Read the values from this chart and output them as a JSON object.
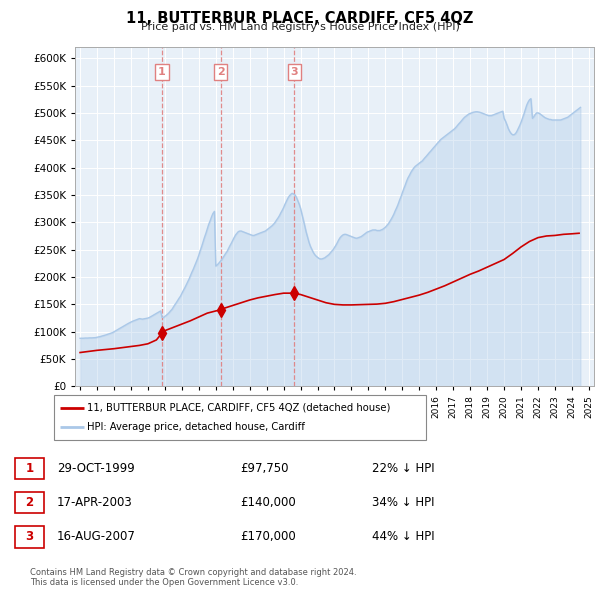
{
  "title": "11, BUTTERBUR PLACE, CARDIFF, CF5 4QZ",
  "subtitle": "Price paid vs. HM Land Registry's House Price Index (HPI)",
  "ylabel_ticks": [
    "£0",
    "£50K",
    "£100K",
    "£150K",
    "£200K",
    "£250K",
    "£300K",
    "£350K",
    "£400K",
    "£450K",
    "£500K",
    "£550K",
    "£600K"
  ],
  "yticks": [
    0,
    50000,
    100000,
    150000,
    200000,
    250000,
    300000,
    350000,
    400000,
    450000,
    500000,
    550000,
    600000
  ],
  "ylim": [
    0,
    620000
  ],
  "xlim_start": 1994.7,
  "xlim_end": 2025.3,
  "hpi_color": "#aac8e8",
  "property_color": "#cc0000",
  "vline_color": "#e08080",
  "background_color": "#e8f0f8",
  "grid_color": "#ffffff",
  "legend_label_property": "11, BUTTERBUR PLACE, CARDIFF, CF5 4QZ (detached house)",
  "legend_label_hpi": "HPI: Average price, detached house, Cardiff",
  "sale_points": [
    {
      "num": 1,
      "date": "29-OCT-1999",
      "price": 97750,
      "pct": "22%",
      "x_year": 1999.83
    },
    {
      "num": 2,
      "date": "17-APR-2003",
      "price": 140000,
      "pct": "34%",
      "x_year": 2003.29
    },
    {
      "num": 3,
      "date": "16-AUG-2007",
      "price": 170000,
      "pct": "44%",
      "x_year": 2007.62
    }
  ],
  "footer": "Contains HM Land Registry data © Crown copyright and database right 2024.\nThis data is licensed under the Open Government Licence v3.0.",
  "hpi_years": [
    1995,
    1995.08,
    1995.17,
    1995.25,
    1995.33,
    1995.42,
    1995.5,
    1995.58,
    1995.67,
    1995.75,
    1995.83,
    1995.92,
    1996,
    1996.08,
    1996.17,
    1996.25,
    1996.33,
    1996.42,
    1996.5,
    1996.58,
    1996.67,
    1996.75,
    1996.83,
    1996.92,
    1997,
    1997.08,
    1997.17,
    1997.25,
    1997.33,
    1997.42,
    1997.5,
    1997.58,
    1997.67,
    1997.75,
    1997.83,
    1997.92,
    1998,
    1998.08,
    1998.17,
    1998.25,
    1998.33,
    1998.42,
    1998.5,
    1998.58,
    1998.67,
    1998.75,
    1998.83,
    1998.92,
    1999,
    1999.08,
    1999.17,
    1999.25,
    1999.33,
    1999.42,
    1999.5,
    1999.58,
    1999.67,
    1999.75,
    1999.83,
    1999.92,
    2000,
    2000.08,
    2000.17,
    2000.25,
    2000.33,
    2000.42,
    2000.5,
    2000.58,
    2000.67,
    2000.75,
    2000.83,
    2000.92,
    2001,
    2001.08,
    2001.17,
    2001.25,
    2001.33,
    2001.42,
    2001.5,
    2001.58,
    2001.67,
    2001.75,
    2001.83,
    2001.92,
    2002,
    2002.08,
    2002.17,
    2002.25,
    2002.33,
    2002.42,
    2002.5,
    2002.58,
    2002.67,
    2002.75,
    2002.83,
    2002.92,
    2003,
    2003.08,
    2003.17,
    2003.25,
    2003.33,
    2003.42,
    2003.5,
    2003.58,
    2003.67,
    2003.75,
    2003.83,
    2003.92,
    2004,
    2004.08,
    2004.17,
    2004.25,
    2004.33,
    2004.42,
    2004.5,
    2004.58,
    2004.67,
    2004.75,
    2004.83,
    2004.92,
    2005,
    2005.08,
    2005.17,
    2005.25,
    2005.33,
    2005.42,
    2005.5,
    2005.58,
    2005.67,
    2005.75,
    2005.83,
    2005.92,
    2006,
    2006.08,
    2006.17,
    2006.25,
    2006.33,
    2006.42,
    2006.5,
    2006.58,
    2006.67,
    2006.75,
    2006.83,
    2006.92,
    2007,
    2007.08,
    2007.17,
    2007.25,
    2007.33,
    2007.42,
    2007.5,
    2007.58,
    2007.67,
    2007.75,
    2007.83,
    2007.92,
    2008,
    2008.08,
    2008.17,
    2008.25,
    2008.33,
    2008.42,
    2008.5,
    2008.58,
    2008.67,
    2008.75,
    2008.83,
    2008.92,
    2009,
    2009.08,
    2009.17,
    2009.25,
    2009.33,
    2009.42,
    2009.5,
    2009.58,
    2009.67,
    2009.75,
    2009.83,
    2009.92,
    2010,
    2010.08,
    2010.17,
    2010.25,
    2010.33,
    2010.42,
    2010.5,
    2010.58,
    2010.67,
    2010.75,
    2010.83,
    2010.92,
    2011,
    2011.08,
    2011.17,
    2011.25,
    2011.33,
    2011.42,
    2011.5,
    2011.58,
    2011.67,
    2011.75,
    2011.83,
    2011.92,
    2012,
    2012.08,
    2012.17,
    2012.25,
    2012.33,
    2012.42,
    2012.5,
    2012.58,
    2012.67,
    2012.75,
    2012.83,
    2012.92,
    2013,
    2013.08,
    2013.17,
    2013.25,
    2013.33,
    2013.42,
    2013.5,
    2013.58,
    2013.67,
    2013.75,
    2013.83,
    2013.92,
    2014,
    2014.08,
    2014.17,
    2014.25,
    2014.33,
    2014.42,
    2014.5,
    2014.58,
    2014.67,
    2014.75,
    2014.83,
    2014.92,
    2015,
    2015.08,
    2015.17,
    2015.25,
    2015.33,
    2015.42,
    2015.5,
    2015.58,
    2015.67,
    2015.75,
    2015.83,
    2015.92,
    2016,
    2016.08,
    2016.17,
    2016.25,
    2016.33,
    2016.42,
    2016.5,
    2016.58,
    2016.67,
    2016.75,
    2016.83,
    2016.92,
    2017,
    2017.08,
    2017.17,
    2017.25,
    2017.33,
    2017.42,
    2017.5,
    2017.58,
    2017.67,
    2017.75,
    2017.83,
    2017.92,
    2018,
    2018.08,
    2018.17,
    2018.25,
    2018.33,
    2018.42,
    2018.5,
    2018.58,
    2018.67,
    2018.75,
    2018.83,
    2018.92,
    2019,
    2019.08,
    2019.17,
    2019.25,
    2019.33,
    2019.42,
    2019.5,
    2019.58,
    2019.67,
    2019.75,
    2019.83,
    2019.92,
    2020,
    2020.08,
    2020.17,
    2020.25,
    2020.33,
    2020.42,
    2020.5,
    2020.58,
    2020.67,
    2020.75,
    2020.83,
    2020.92,
    2021,
    2021.08,
    2021.17,
    2021.25,
    2021.33,
    2021.42,
    2021.5,
    2021.58,
    2021.67,
    2021.75,
    2021.83,
    2021.92,
    2022,
    2022.08,
    2022.17,
    2022.25,
    2022.33,
    2022.42,
    2022.5,
    2022.58,
    2022.67,
    2022.75,
    2022.83,
    2022.92,
    2023,
    2023.08,
    2023.17,
    2023.25,
    2023.33,
    2023.42,
    2023.5,
    2023.58,
    2023.67,
    2023.75,
    2023.83,
    2023.92,
    2024,
    2024.08,
    2024.17,
    2024.25,
    2024.33,
    2024.42,
    2024.5
  ],
  "hpi_values": [
    88000,
    88200,
    88100,
    88300,
    88500,
    88400,
    88600,
    88800,
    88700,
    88900,
    89100,
    89300,
    90000,
    90500,
    91000,
    91800,
    92500,
    93200,
    94000,
    94800,
    95500,
    96500,
    97500,
    98500,
    100000,
    101500,
    103000,
    104500,
    106000,
    107500,
    109000,
    110500,
    112000,
    113500,
    115000,
    116500,
    118000,
    119000,
    120000,
    121000,
    122000,
    123000,
    124000,
    123500,
    123000,
    123500,
    124000,
    124500,
    125000,
    126000,
    127500,
    129000,
    130500,
    132000,
    133500,
    135000,
    136500,
    138000,
    126500,
    126000,
    128000,
    130000,
    132500,
    135000,
    138000,
    141000,
    145000,
    149000,
    153000,
    157000,
    161000,
    165000,
    170000,
    175000,
    180000,
    185000,
    190000,
    196000,
    202000,
    208000,
    214000,
    220000,
    226000,
    233000,
    240000,
    248000,
    256000,
    264000,
    272000,
    280000,
    288000,
    296000,
    303000,
    310000,
    316000,
    320000,
    220000,
    222000,
    225000,
    228000,
    231000,
    235000,
    239000,
    243000,
    247000,
    252000,
    257000,
    262000,
    267000,
    272000,
    277000,
    280000,
    283000,
    284000,
    284000,
    283000,
    282000,
    281000,
    280000,
    279000,
    278000,
    277000,
    276000,
    276000,
    277000,
    278000,
    279000,
    280000,
    281000,
    282000,
    283000,
    284000,
    286000,
    288000,
    290000,
    292000,
    294000,
    297000,
    300000,
    304000,
    308000,
    312000,
    317000,
    322000,
    327000,
    333000,
    339000,
    344000,
    348000,
    351000,
    353000,
    352000,
    350000,
    346000,
    340000,
    333000,
    325000,
    315000,
    304000,
    293000,
    282000,
    272000,
    263000,
    256000,
    250000,
    245000,
    241000,
    238000,
    236000,
    234000,
    233000,
    233000,
    234000,
    235000,
    237000,
    239000,
    241000,
    244000,
    247000,
    250000,
    254000,
    258000,
    263000,
    268000,
    272000,
    275000,
    277000,
    278000,
    278000,
    277000,
    276000,
    275000,
    274000,
    273000,
    272000,
    271000,
    271000,
    272000,
    273000,
    274000,
    276000,
    278000,
    280000,
    282000,
    283000,
    284000,
    285000,
    286000,
    286000,
    286000,
    285000,
    285000,
    285000,
    286000,
    287000,
    289000,
    291000,
    294000,
    297000,
    301000,
    305000,
    310000,
    315000,
    321000,
    327000,
    333000,
    340000,
    347000,
    354000,
    361000,
    368000,
    375000,
    381000,
    386000,
    391000,
    395000,
    399000,
    402000,
    404000,
    406000,
    408000,
    410000,
    412000,
    415000,
    418000,
    421000,
    424000,
    427000,
    430000,
    433000,
    436000,
    439000,
    442000,
    445000,
    448000,
    451000,
    453000,
    455000,
    457000,
    459000,
    461000,
    463000,
    465000,
    467000,
    469000,
    471000,
    474000,
    477000,
    480000,
    483000,
    486000,
    489000,
    492000,
    494000,
    496000,
    498000,
    499000,
    500000,
    501000,
    501500,
    502000,
    502000,
    501500,
    501000,
    500000,
    499000,
    498000,
    497000,
    496000,
    495000,
    495000,
    495000,
    496000,
    497000,
    498000,
    499000,
    500000,
    501000,
    502000,
    503000,
    490000,
    485000,
    478000,
    471000,
    466000,
    462000,
    460000,
    460000,
    462000,
    466000,
    471000,
    477000,
    483000,
    490000,
    498000,
    506000,
    514000,
    520000,
    524000,
    526000,
    490000,
    493000,
    497000,
    500000,
    500000,
    499000,
    497000,
    495000,
    493000,
    491000,
    490000,
    489000,
    488000,
    488000,
    487000,
    487000,
    487000,
    487000,
    487000,
    487000,
    487000,
    488000,
    489000,
    490000,
    491000,
    492000,
    494000,
    496000,
    498000,
    500000,
    502000,
    504000,
    506000,
    508000,
    510000,
    512000,
    514000,
    516000,
    518000,
    520000,
    522000,
    524000,
    526000
  ],
  "prop_years": [
    1995,
    1995.5,
    1996,
    1996.5,
    1997,
    1997.5,
    1998,
    1998.5,
    1999,
    1999.5,
    1999.83,
    2000,
    2000.5,
    2001,
    2001.5,
    2002,
    2002.5,
    2003,
    2003.29,
    2003.5,
    2004,
    2004.5,
    2005,
    2005.5,
    2006,
    2006.5,
    2007,
    2007.5,
    2007.62,
    2008,
    2008.5,
    2009,
    2009.5,
    2010,
    2010.5,
    2011,
    2011.5,
    2012,
    2012.5,
    2013,
    2013.5,
    2014,
    2014.5,
    2015,
    2015.5,
    2016,
    2016.5,
    2017,
    2017.5,
    2018,
    2018.5,
    2019,
    2019.5,
    2020,
    2020.5,
    2021,
    2021.5,
    2022,
    2022.5,
    2023,
    2023.5,
    2024,
    2024.42
  ],
  "prop_values": [
    62000,
    64000,
    66000,
    67500,
    69000,
    71000,
    73000,
    75000,
    78000,
    85000,
    97750,
    102000,
    108000,
    114000,
    120000,
    127000,
    134000,
    138000,
    140000,
    143000,
    148000,
    153000,
    158000,
    162000,
    165000,
    168000,
    170500,
    170500,
    170000,
    168000,
    163000,
    158000,
    153000,
    150000,
    149000,
    149000,
    149500,
    150000,
    150500,
    152000,
    155000,
    159000,
    163000,
    167000,
    172000,
    178000,
    184000,
    191000,
    198000,
    205000,
    211000,
    218000,
    225000,
    232000,
    243000,
    255000,
    265000,
    272000,
    275000,
    276000,
    278000,
    279000,
    280000
  ]
}
